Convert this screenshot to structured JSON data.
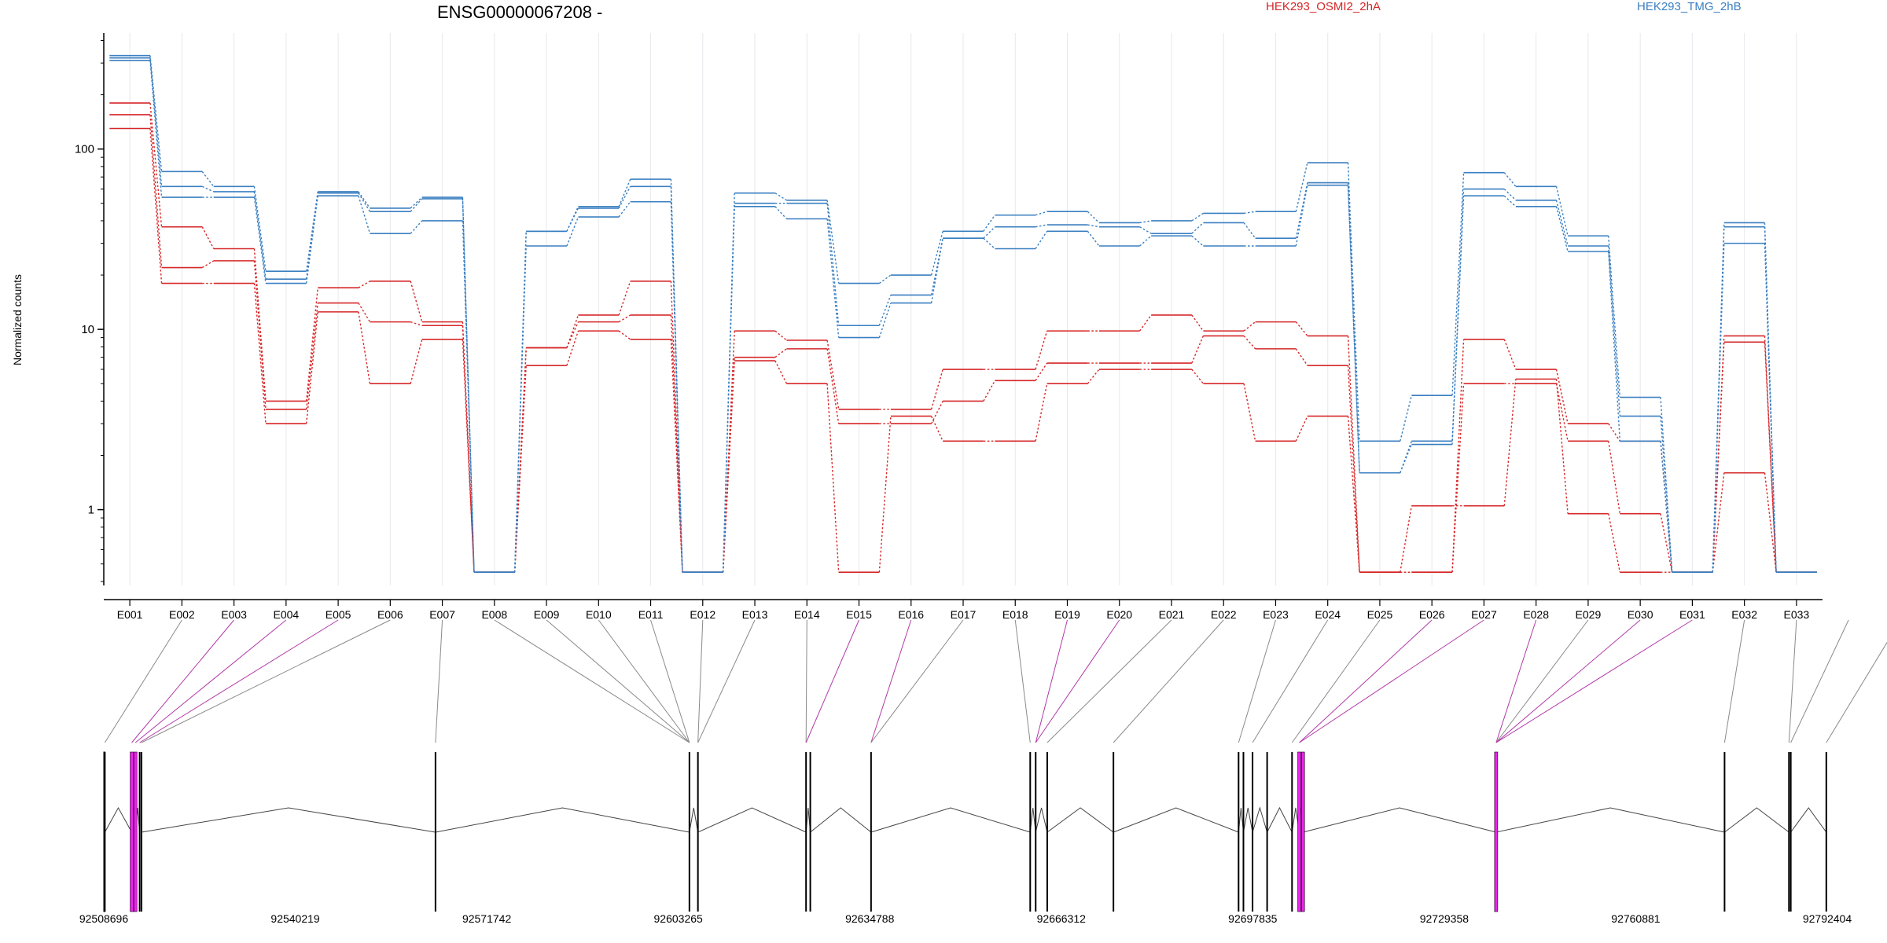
{
  "chart_data": {
    "type": "line",
    "title": "ENSG00000067208 -",
    "ylabel": "Normalized counts",
    "xlabel": "",
    "y_scale": "log",
    "ylim": [
      0.38,
      440
    ],
    "y_ticks": [
      1,
      10,
      100
    ],
    "y_tick_labels": [
      "1",
      "10",
      "100"
    ],
    "grid": "vertical lines at each exon",
    "categories": [
      "E001",
      "E002",
      "E003",
      "E004",
      "E005",
      "E006",
      "E007",
      "E008",
      "E009",
      "E010",
      "E011",
      "E012",
      "E013",
      "E014",
      "E015",
      "E016",
      "E017",
      "E018",
      "E019",
      "E020",
      "E021",
      "E022",
      "E023",
      "E024",
      "E025",
      "E026",
      "E027",
      "E028",
      "E029",
      "E030",
      "E031",
      "E032",
      "E033"
    ],
    "groups": [
      {
        "name": "HEK293_OSMI2_2hA",
        "color": "#d62728"
      },
      {
        "name": "HEK293_TMG_2hB",
        "color": "#3a7fc1"
      }
    ],
    "series": [
      {
        "group": 0,
        "values": [
          180,
          37,
          28,
          4.0,
          17,
          18.5,
          11,
          0.45,
          7.9,
          12,
          18.5,
          0.45,
          9.8,
          8.7,
          3.6,
          3.6,
          6.0,
          6.0,
          9.8,
          9.8,
          12,
          9.8,
          11,
          9.2,
          0.45,
          0.45,
          8.8,
          6.0,
          3.0,
          2.4,
          0.45,
          9.2,
          0.45
        ]
      },
      {
        "group": 0,
        "values": [
          155,
          22,
          24,
          3.6,
          14,
          11,
          10.5,
          0.45,
          7.9,
          11,
          12,
          0.45,
          7.0,
          7.8,
          3.0,
          3.0,
          4.0,
          5.2,
          6.5,
          6.5,
          6.5,
          9.2,
          7.8,
          6.3,
          0.45,
          0.45,
          5.0,
          5.0,
          2.4,
          0.95,
          0.45,
          8.5,
          0.45
        ]
      },
      {
        "group": 0,
        "values": [
          130,
          18,
          18,
          3.0,
          12.5,
          5.0,
          8.8,
          0.45,
          6.3,
          9.8,
          8.8,
          0.45,
          6.7,
          5.0,
          0.45,
          3.3,
          2.4,
          2.4,
          5.0,
          6.0,
          6.0,
          5.0,
          2.4,
          3.3,
          0.45,
          1.05,
          1.05,
          5.3,
          0.95,
          0.45,
          0.45,
          1.6,
          0.45
        ]
      },
      {
        "group": 1,
        "values": [
          330,
          75,
          62,
          21,
          58,
          47,
          54,
          0.45,
          35,
          48,
          68,
          0.45,
          57,
          52,
          18,
          20,
          35,
          43,
          45,
          39,
          40,
          44,
          45,
          84,
          2.4,
          4.3,
          74,
          62,
          33,
          4.2,
          0.45,
          39,
          0.45
        ]
      },
      {
        "group": 1,
        "values": [
          320,
          62,
          58,
          19,
          57,
          45,
          53,
          0.45,
          35,
          47,
          62,
          0.45,
          50,
          50,
          10.5,
          15.5,
          32,
          37,
          38,
          37,
          34,
          39,
          32,
          65,
          1.6,
          2.4,
          60,
          52,
          29,
          3.3,
          0.45,
          37,
          0.45
        ]
      },
      {
        "group": 1,
        "values": [
          310,
          54,
          54,
          18,
          55,
          34,
          40,
          0.45,
          29,
          42,
          51,
          0.45,
          48,
          41,
          9.0,
          14,
          32,
          28,
          35,
          29,
          33,
          29,
          29,
          63,
          1.6,
          2.3,
          55,
          48,
          27,
          2.4,
          0.45,
          30,
          0.45
        ]
      }
    ],
    "genome": {
      "start": 92508696,
      "end": 92792404,
      "tick_labels": [
        "92508696",
        "92540219",
        "92571742",
        "92603265",
        "92634788",
        "92666312",
        "92697835",
        "92729358",
        "92760881",
        "92792404"
      ],
      "highlight_color": "#ee22ee",
      "exon_positions": [
        92508870,
        92513300,
        92513900,
        92514600,
        92514900,
        92563300,
        92605100,
        92606500,
        92624300,
        92625000,
        92635000,
        92661200,
        92662100,
        92664000,
        92674900,
        92695500,
        92696300,
        92697800,
        92700200,
        92704300,
        92705500,
        92706100,
        92737900,
        92775500,
        92786100,
        92786400,
        92792250
      ],
      "highlighted_exons": [
        1,
        2,
        20,
        21,
        22
      ],
      "exon_links": [
        [
          1,
          0
        ],
        [
          2,
          1
        ],
        [
          3,
          2
        ],
        [
          4,
          3
        ],
        [
          5,
          4
        ],
        [
          6,
          5
        ],
        [
          7,
          6
        ],
        [
          8,
          6
        ],
        [
          9,
          6
        ],
        [
          10,
          6
        ],
        [
          11,
          7
        ],
        [
          12,
          7
        ],
        [
          13,
          8
        ],
        [
          14,
          8
        ],
        [
          15,
          10
        ],
        [
          16,
          10
        ],
        [
          17,
          11
        ],
        [
          18,
          12
        ],
        [
          19,
          12
        ],
        [
          20,
          13
        ],
        [
          21,
          14
        ],
        [
          22,
          15
        ],
        [
          23,
          17
        ],
        [
          24,
          19
        ],
        [
          25,
          20
        ],
        [
          26,
          20
        ],
        [
          27,
          22
        ],
        [
          28,
          22
        ],
        [
          29,
          22
        ],
        [
          30,
          22
        ],
        [
          31,
          23
        ],
        [
          32,
          24
        ],
        [
          33,
          25
        ],
        [
          34,
          26
        ]
      ],
      "highlighted_links": [
        1,
        2,
        3,
        13,
        14,
        17,
        18,
        24,
        25,
        26,
        28,
        29
      ]
    }
  }
}
